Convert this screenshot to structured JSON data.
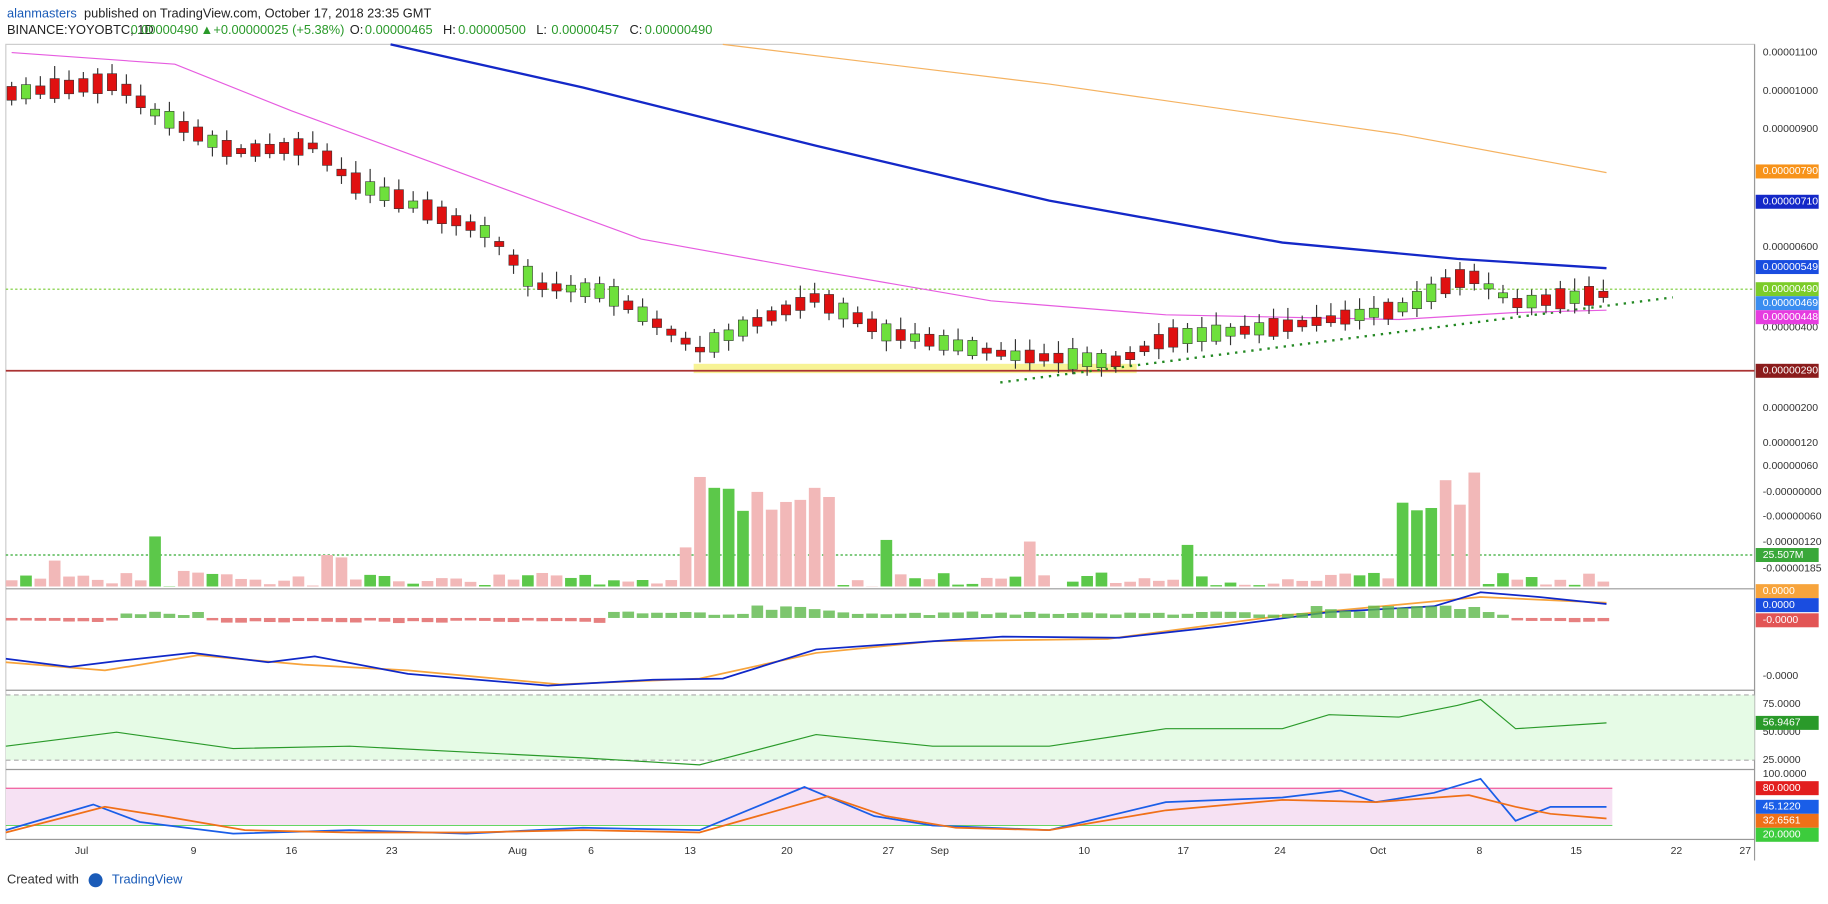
{
  "header": {
    "author": "alanmasters",
    "published": "published on TradingView.com, October 17, 2018 23:35 GMT",
    "symbol": "BINANCE:YOYOBTC, 1D",
    "last": "0.00000490",
    "arrow": "▲",
    "change": "+0.00000025 (+5.38%)",
    "ohlc": [
      {
        "key": "O:",
        "value": "0.00000465"
      },
      {
        "key": "H:",
        "value": "0.00000500"
      },
      {
        "key": "L:",
        "value": "0.00000457"
      },
      {
        "key": "C:",
        "value": "0.00000490"
      }
    ]
  },
  "price_axis": [
    "0.00001100",
    "0.00001000",
    "0.00000900",
    "0.00000600",
    "0.00000400",
    "0.00000200"
  ],
  "volume_axis": [
    "0.00000120",
    "0.00000060",
    "-0.00000000",
    "-0.00000060",
    "-0.00000120",
    "-0.00000185"
  ],
  "price_badges": [
    "0.00000790",
    "0.00000710",
    "0.00000549",
    "0.00000490",
    "0.00000469",
    "0.00000448",
    "0.00000290"
  ],
  "volume_badge": "25.507M",
  "macd_axis": {
    "badges": [
      "0.0000",
      "0.0000",
      "-0.0000"
    ],
    "labels": [
      "-0.0000"
    ]
  },
  "rsi_axis": {
    "labels": [
      "75.0000",
      "50.0000",
      "25.0000"
    ],
    "badge": "56.9467"
  },
  "stoch_axis": {
    "labels": [
      "100.0000"
    ],
    "badges": [
      "80.0000",
      "45.1220",
      "32.6561",
      "20.0000"
    ]
  },
  "date_axis": [
    "Jul",
    "9",
    "16",
    "23",
    "Aug",
    "6",
    "13",
    "20",
    "27",
    "Sep",
    "10",
    "17",
    "24",
    "Oct",
    "8",
    "15",
    "22",
    "27"
  ],
  "footer": {
    "created": "Created with",
    "brand": "TradingView"
  }
}
